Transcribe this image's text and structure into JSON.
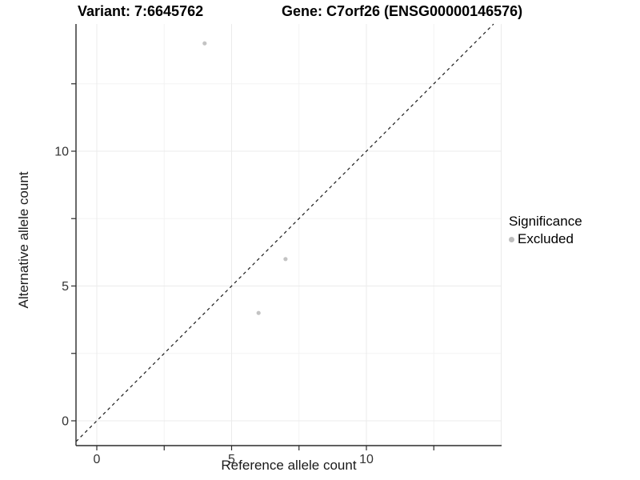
{
  "titles": {
    "variant": "Variant: 7:6645762",
    "gene": "Gene: C7orf26 (ENSG00000146576)"
  },
  "chart_data": {
    "type": "scatter",
    "title_left": "Variant: 7:6645762",
    "title_right": "Gene: C7orf26 (ENSG00000146576)",
    "xlabel": "Reference allele count",
    "ylabel": "Alternative allele count",
    "x_major_ticks": [
      0,
      5,
      10
    ],
    "x_minor_ticks": [
      2.5,
      7.5,
      12.5
    ],
    "y_major_ticks": [
      0,
      5,
      10
    ],
    "y_minor_ticks": [
      2.5,
      7.5,
      12.5
    ],
    "x_extra_gridlines": [
      15
    ],
    "xlim": [
      -0.77,
      15.0
    ],
    "ylim": [
      -0.92,
      14.7
    ],
    "grid": true,
    "identity_line": {
      "style": "dashed",
      "equation": "y = x",
      "color": "#1a1a1a"
    },
    "series": [
      {
        "name": "Excluded",
        "color": "#c3c3c3",
        "points": [
          {
            "x": 4,
            "y": 14
          },
          {
            "x": 6,
            "y": 4
          },
          {
            "x": 7,
            "y": 6
          }
        ]
      }
    ],
    "legend": {
      "title": "Significance",
      "position": "right",
      "entries": [
        {
          "label": "Excluded",
          "color": "#bdbdbd"
        }
      ]
    },
    "colors": {
      "axis_line": "#2b2b2b",
      "tick_label": "#333333",
      "grid_major": "#ebebeb",
      "grid_minor": "#f3f3f3"
    }
  }
}
